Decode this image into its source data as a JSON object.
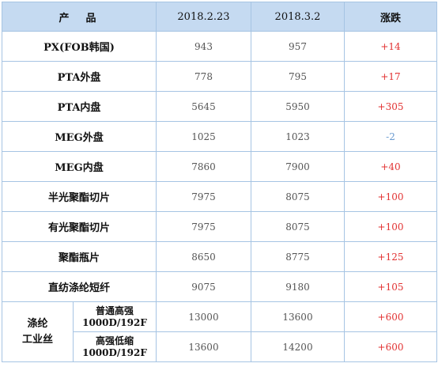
{
  "header": {
    "product": "产  品",
    "date1": "2018.2.23",
    "date2": "2018.3.2",
    "change": "涨跌"
  },
  "rows": [
    {
      "name": "PX(FOB韩国)",
      "v1": "943",
      "v2": "957",
      "change": "+14"
    },
    {
      "name": "PTA外盘",
      "v1": "778",
      "v2": "795",
      "change": "+17"
    },
    {
      "name": "PTA内盘",
      "v1": "5645",
      "v2": "5950",
      "change": "+305"
    },
    {
      "name": "MEG外盘",
      "v1": "1025",
      "v2": "1023",
      "change": "-2"
    },
    {
      "name": "MEG内盘",
      "v1": "7860",
      "v2": "7900",
      "change": "+40"
    },
    {
      "name": "半光聚酯切片",
      "v1": "7975",
      "v2": "8075",
      "change": "+100"
    },
    {
      "name": "有光聚酯切片",
      "v1": "7975",
      "v2": "8075",
      "change": "+100"
    },
    {
      "name": "聚酯瓶片",
      "v1": "8650",
      "v2": "8775",
      "change": "+125"
    },
    {
      "name": "直纺涤纶短纤",
      "v1": "9075",
      "v2": "9180",
      "change": "+105"
    }
  ],
  "group": {
    "label_line1": "涤纶",
    "label_line2": "工业丝",
    "items": [
      {
        "name_line1": "普通高强",
        "name_line2": "1000D/192F",
        "v1": "13000",
        "v2": "13600",
        "change": "+600"
      },
      {
        "name_line1": "高强低缩",
        "name_line2": "1000D/192F",
        "v1": "13600",
        "v2": "14200",
        "change": "+600"
      }
    ]
  },
  "colors": {
    "header_bg": "#c5daf1",
    "border": "#a6c4e3",
    "up": "#e23232",
    "down": "#6a9bd1"
  }
}
